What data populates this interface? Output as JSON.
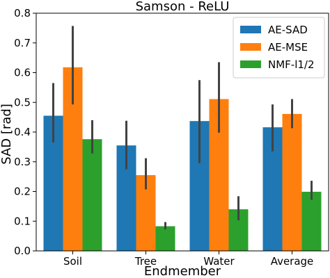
{
  "chart_data": {
    "type": "bar",
    "title": "Samson - ReLU",
    "xlabel": "Endmember",
    "ylabel": "SAD [rad]",
    "ylim": [
      0,
      0.8
    ],
    "yticks": [
      "0.0",
      "0.1",
      "0.2",
      "0.3",
      "0.4",
      "0.5",
      "0.6",
      "0.7",
      "0.8"
    ],
    "categories": [
      "Soil",
      "Tree",
      "Water",
      "Average"
    ],
    "series": [
      {
        "name": "AE-SAD",
        "color": "#1f77b4",
        "values": [
          0.455,
          0.355,
          0.437,
          0.416
        ],
        "err_low": [
          0.365,
          0.275,
          0.295,
          0.335
        ],
        "err_high": [
          0.565,
          0.438,
          0.575,
          0.493
        ]
      },
      {
        "name": "AE-MSE",
        "color": "#ff7f0e",
        "values": [
          0.618,
          0.255,
          0.511,
          0.461
        ],
        "err_low": [
          0.493,
          0.207,
          0.398,
          0.413
        ],
        "err_high": [
          0.757,
          0.312,
          0.635,
          0.511
        ]
      },
      {
        "name": "NMF-l1/2",
        "color": "#2ca02c",
        "values": [
          0.376,
          0.083,
          0.14,
          0.199
        ],
        "err_low": [
          0.328,
          0.072,
          0.103,
          0.172
        ],
        "err_high": [
          0.44,
          0.097,
          0.184,
          0.236
        ]
      }
    ],
    "legend_position": "upper right",
    "grid": false
  }
}
